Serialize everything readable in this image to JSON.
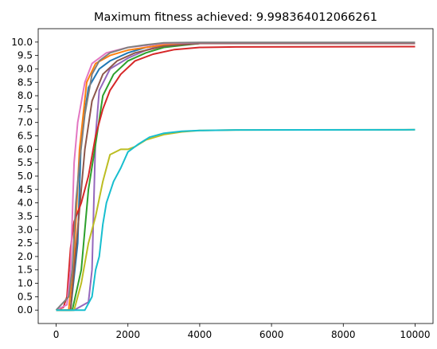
{
  "chart_data": {
    "type": "line",
    "title": "Maximum fitness achieved: 9.998364012066261",
    "xlabel": "",
    "ylabel": "",
    "xlim": [
      -500,
      10500
    ],
    "ylim": [
      -0.5,
      10.5
    ],
    "xticks": [
      0,
      2000,
      4000,
      6000,
      8000,
      10000
    ],
    "xtick_labels": [
      "0",
      "2000",
      "4000",
      "6000",
      "8000",
      "10000"
    ],
    "yticks": [
      0.0,
      0.5,
      1.0,
      1.5,
      2.0,
      2.5,
      3.0,
      3.5,
      4.0,
      4.5,
      5.0,
      5.5,
      6.0,
      6.5,
      7.0,
      7.5,
      8.0,
      8.5,
      9.0,
      9.5,
      10.0
    ],
    "ytick_labels": [
      "0.0",
      "0.5",
      "1.0",
      "1.5",
      "2.0",
      "2.5",
      "3.0",
      "3.5",
      "4.0",
      "4.5",
      "5.0",
      "5.5",
      "6.0",
      "6.5",
      "7.0",
      "7.5",
      "8.0",
      "8.5",
      "9.0",
      "9.5",
      "10.0"
    ],
    "grid": false,
    "legend": "none",
    "series": [
      {
        "color": "#9467bd",
        "points": [
          [
            0,
            0
          ],
          [
            500,
            0
          ],
          [
            900,
            0.3
          ],
          [
            1000,
            1.5
          ],
          [
            1100,
            6.5
          ],
          [
            1200,
            8.2
          ],
          [
            1500,
            9.0
          ],
          [
            2000,
            9.4
          ],
          [
            2500,
            9.7
          ],
          [
            3000,
            9.9
          ],
          [
            4000,
            9.95
          ],
          [
            6000,
            9.95
          ],
          [
            10000,
            9.95
          ]
        ]
      },
      {
        "color": "#1f77b4",
        "points": [
          [
            0,
            0
          ],
          [
            400,
            0
          ],
          [
            600,
            2.5
          ],
          [
            700,
            6.5
          ],
          [
            900,
            8.3
          ],
          [
            1200,
            9.0
          ],
          [
            1500,
            9.3
          ],
          [
            2000,
            9.6
          ],
          [
            2500,
            9.8
          ],
          [
            3000,
            9.9
          ],
          [
            4000,
            9.95
          ],
          [
            6000,
            9.95
          ],
          [
            10000,
            9.95
          ]
        ]
      },
      {
        "color": "#ff7f0e",
        "points": [
          [
            0,
            0
          ],
          [
            350,
            0
          ],
          [
            500,
            2.0
          ],
          [
            650,
            6.0
          ],
          [
            850,
            8.5
          ],
          [
            1100,
            9.2
          ],
          [
            1500,
            9.5
          ],
          [
            2000,
            9.7
          ],
          [
            3000,
            9.9
          ],
          [
            4000,
            9.95
          ],
          [
            10000,
            9.95
          ]
        ]
      },
      {
        "color": "#2ca02c",
        "points": [
          [
            0,
            0
          ],
          [
            450,
            0
          ],
          [
            700,
            1.5
          ],
          [
            900,
            4.5
          ],
          [
            1100,
            6.2
          ],
          [
            1300,
            8.0
          ],
          [
            1600,
            8.8
          ],
          [
            2000,
            9.3
          ],
          [
            2500,
            9.6
          ],
          [
            3000,
            9.8
          ],
          [
            4000,
            9.95
          ],
          [
            10000,
            9.95
          ]
        ]
      },
      {
        "color": "#8c564b",
        "points": [
          [
            0,
            0
          ],
          [
            400,
            0
          ],
          [
            600,
            3.0
          ],
          [
            800,
            6.0
          ],
          [
            1000,
            7.8
          ],
          [
            1300,
            8.8
          ],
          [
            1700,
            9.3
          ],
          [
            2200,
            9.6
          ],
          [
            3000,
            9.85
          ],
          [
            4000,
            9.95
          ],
          [
            10000,
            9.95
          ]
        ]
      },
      {
        "color": "#d62728",
        "points": [
          [
            0,
            0
          ],
          [
            200,
            0.1
          ],
          [
            300,
            0.5
          ],
          [
            400,
            2.3
          ],
          [
            500,
            3.3
          ],
          [
            700,
            4.0
          ],
          [
            900,
            5.0
          ],
          [
            1100,
            6.5
          ],
          [
            1300,
            7.5
          ],
          [
            1500,
            8.2
          ],
          [
            1800,
            8.8
          ],
          [
            2200,
            9.3
          ],
          [
            2700,
            9.55
          ],
          [
            3300,
            9.72
          ],
          [
            4000,
            9.8
          ],
          [
            5000,
            9.82
          ],
          [
            10000,
            9.83
          ]
        ]
      },
      {
        "color": "#e377c2",
        "points": [
          [
            0,
            0
          ],
          [
            300,
            0.2
          ],
          [
            400,
            1.5
          ],
          [
            500,
            5.5
          ],
          [
            600,
            7.0
          ],
          [
            800,
            8.5
          ],
          [
            1000,
            9.2
          ],
          [
            1400,
            9.6
          ],
          [
            2000,
            9.8
          ],
          [
            3000,
            9.95
          ],
          [
            4000,
            9.98
          ],
          [
            10000,
            9.98
          ]
        ]
      },
      {
        "color": "#7f7f7f",
        "points": [
          [
            0,
            0
          ],
          [
            350,
            0.5
          ],
          [
            450,
            1.5
          ],
          [
            550,
            4.0
          ],
          [
            650,
            5.5
          ],
          [
            800,
            7.3
          ],
          [
            1000,
            8.8
          ],
          [
            1200,
            9.3
          ],
          [
            1500,
            9.6
          ],
          [
            2000,
            9.8
          ],
          [
            2500,
            9.9
          ],
          [
            3000,
            9.97
          ],
          [
            4000,
            9.99
          ],
          [
            10000,
            9.99
          ]
        ]
      },
      {
        "color": "#bcbd22",
        "points": [
          [
            0,
            0
          ],
          [
            500,
            0
          ],
          [
            700,
            1.0
          ],
          [
            900,
            2.5
          ],
          [
            1100,
            3.5
          ],
          [
            1300,
            4.8
          ],
          [
            1500,
            5.8
          ],
          [
            1800,
            6.0
          ],
          [
            2000,
            6.0
          ],
          [
            2200,
            6.1
          ],
          [
            2500,
            6.35
          ],
          [
            3000,
            6.55
          ],
          [
            3500,
            6.65
          ],
          [
            4000,
            6.7
          ],
          [
            5000,
            6.72
          ],
          [
            10000,
            6.73
          ]
        ]
      },
      {
        "color": "#17becf",
        "points": [
          [
            0,
            0
          ],
          [
            800,
            0
          ],
          [
            1000,
            0.5
          ],
          [
            1100,
            1.5
          ],
          [
            1200,
            2.0
          ],
          [
            1300,
            3.2
          ],
          [
            1400,
            4.0
          ],
          [
            1600,
            4.8
          ],
          [
            1800,
            5.3
          ],
          [
            2000,
            5.9
          ],
          [
            2300,
            6.2
          ],
          [
            2600,
            6.45
          ],
          [
            3000,
            6.6
          ],
          [
            3500,
            6.67
          ],
          [
            4000,
            6.7
          ],
          [
            5000,
            6.72
          ],
          [
            10000,
            6.73
          ]
        ]
      }
    ]
  }
}
